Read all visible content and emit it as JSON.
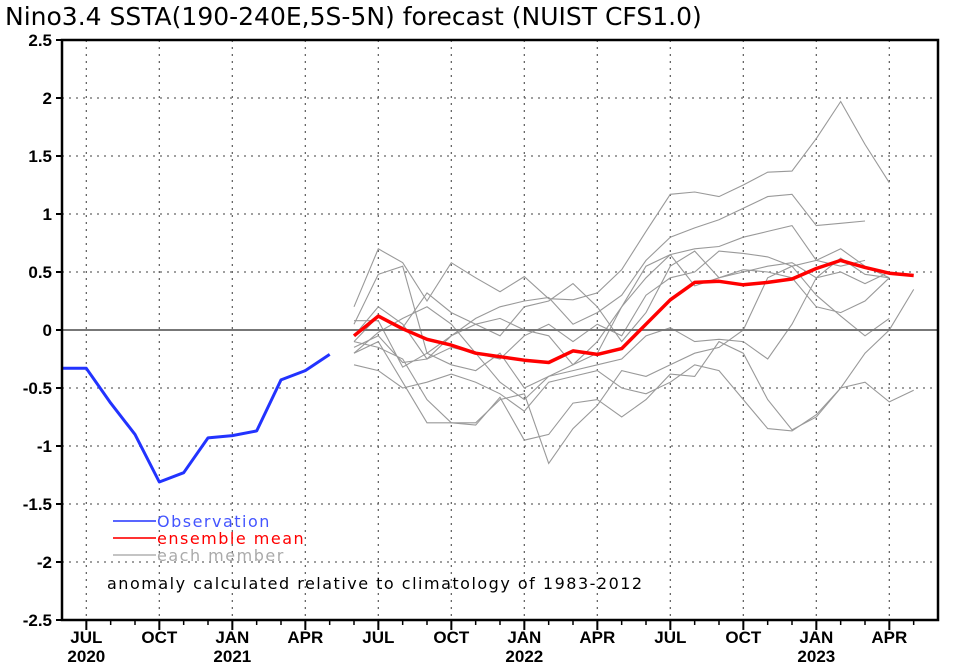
{
  "chart_data": {
    "type": "line",
    "title": "Nino3.4 SSTA(190-240E,5S-5N) forecast (NUIST CFS1.0)",
    "xlabel": "",
    "ylabel": "",
    "ylim": [
      -2.5,
      2.5
    ],
    "y_ticks": [
      "2.5",
      "2",
      "1.5",
      "1",
      "0.5",
      "0",
      "-0.5",
      "-1",
      "-1.5",
      "-2",
      "-2.5"
    ],
    "y_tick_values": [
      2.5,
      2,
      1.5,
      1,
      0.5,
      0,
      -0.5,
      -1,
      -1.5,
      -2,
      -2.5
    ],
    "x_range_months": [
      "2020-06",
      "2023-06"
    ],
    "x_ticks": [
      {
        "month": "2020-07",
        "label": "JUL",
        "year": "2020"
      },
      {
        "month": "2020-10",
        "label": "OCT",
        "year": ""
      },
      {
        "month": "2021-01",
        "label": "JAN",
        "year": "2021"
      },
      {
        "month": "2021-04",
        "label": "APR",
        "year": ""
      },
      {
        "month": "2021-07",
        "label": "JUL",
        "year": ""
      },
      {
        "month": "2021-10",
        "label": "OCT",
        "year": ""
      },
      {
        "month": "2022-01",
        "label": "JAN",
        "year": "2022"
      },
      {
        "month": "2022-04",
        "label": "APR",
        "year": ""
      },
      {
        "month": "2022-07",
        "label": "JUL",
        "year": ""
      },
      {
        "month": "2022-10",
        "label": "OCT",
        "year": ""
      },
      {
        "month": "2023-01",
        "label": "JAN",
        "year": "2023"
      },
      {
        "month": "2023-04",
        "label": "APR",
        "year": ""
      }
    ],
    "grid": true,
    "legend_position": "bottom-left",
    "legend": [
      {
        "name": "Observation",
        "color": "#2233ff"
      },
      {
        "name": "ensemble mean",
        "color": "#ff0000"
      },
      {
        "name": "each member",
        "color": "#999999"
      }
    ],
    "annotation": "anomaly calculated relative to climatology of 1983-2012",
    "observation": {
      "start": "2020-06",
      "values": [
        -0.33,
        -0.33,
        -0.63,
        -0.9,
        -1.31,
        -1.23,
        -0.93,
        -0.91,
        -0.87,
        -0.43,
        -0.35,
        -0.21
      ]
    },
    "ensemble_mean": {
      "start": "2021-06",
      "values": [
        -0.05,
        0.12,
        0.01,
        -0.08,
        -0.13,
        -0.2,
        -0.23,
        -0.26,
        -0.28,
        -0.18,
        -0.21,
        -0.16,
        0.05,
        0.26,
        0.41,
        0.42,
        0.39,
        0.41,
        0.44,
        0.53,
        0.6,
        0.54,
        0.49,
        0.47
      ]
    },
    "members": {
      "start": "2021-06",
      "series": [
        [
          0.2,
          0.7,
          0.58,
          0.25,
          0.58,
          0.45,
          0.33,
          0.46,
          0.27,
          0.26,
          0.32,
          0.52,
          0.85,
          1.17,
          1.19,
          1.15,
          1.25,
          1.36,
          1.37,
          1.65,
          1.97,
          1.6,
          1.27
        ],
        [
          0.05,
          0.48,
          0.55,
          -0.2,
          -0.05,
          0.1,
          0.2,
          0.25,
          0.28,
          0.05,
          0.15,
          0.3,
          0.6,
          0.8,
          0.88,
          0.95,
          1.05,
          1.15,
          1.17,
          0.9,
          0.92,
          0.94
        ],
        [
          -0.05,
          0.2,
          0.05,
          -0.25,
          -0.05,
          0.05,
          0.1,
          0.0,
          -0.05,
          -0.3,
          -0.1,
          0.2,
          0.45,
          0.65,
          0.7,
          0.72,
          0.8,
          0.85,
          0.9,
          0.6,
          0.55,
          0.6
        ],
        [
          -0.1,
          0.12,
          0.02,
          0.32,
          0.15,
          0.05,
          -0.05,
          0.2,
          0.25,
          0.4,
          0.2,
          -0.1,
          0.15,
          0.55,
          0.68,
          0.45,
          0.5,
          0.55,
          0.58,
          0.45,
          0.62,
          0.48,
          0.45
        ],
        [
          -0.2,
          -0.02,
          0.1,
          0.2,
          0.05,
          -0.2,
          -0.25,
          -0.05,
          0.05,
          -0.1,
          0.05,
          -0.05,
          0.3,
          0.45,
          0.5,
          0.68,
          0.66,
          0.63,
          0.55,
          0.3,
          0.12,
          -0.05,
          0.1
        ],
        [
          0.08,
          0.08,
          -0.32,
          -0.2,
          -0.3,
          -0.35,
          -0.2,
          -0.5,
          -0.4,
          -0.3,
          -0.2,
          0.2,
          0.55,
          0.65,
          0.38,
          0.45,
          0.52,
          0.5,
          0.45,
          0.2,
          0.15,
          0.25,
          0.45
        ],
        [
          -0.15,
          -0.05,
          -0.28,
          -0.25,
          -0.15,
          -0.2,
          -0.45,
          -0.6,
          -0.4,
          -0.35,
          -0.3,
          -0.25,
          -0.05,
          0.02,
          -0.1,
          -0.08,
          -0.1,
          -0.25,
          0.05,
          0.45,
          0.5,
          0.4,
          0.5
        ],
        [
          -0.3,
          -0.35,
          -0.5,
          -0.45,
          -0.38,
          -0.45,
          -0.55,
          -0.7,
          -0.45,
          -0.4,
          -0.35,
          -0.5,
          -0.55,
          -0.45,
          -0.3,
          -0.35,
          -0.6,
          -0.85,
          -0.87,
          -0.73,
          -0.5,
          -0.45,
          -0.62,
          -0.52
        ],
        [
          -0.2,
          -0.1,
          -0.45,
          -0.8,
          -0.8,
          -0.82,
          -0.58,
          -0.95,
          -0.9,
          -0.63,
          -0.6,
          -0.75,
          -0.6,
          -0.38,
          -0.4,
          -0.1,
          -0.2,
          -0.6,
          -0.86,
          -0.75,
          -0.5,
          -0.2,
          0.0,
          0.35
        ],
        [
          -0.1,
          -0.15,
          -0.25,
          -0.6,
          -0.8,
          -0.8,
          -0.6,
          -0.55,
          -1.15,
          -0.85,
          -0.65,
          -0.35,
          -0.4,
          -0.3,
          -0.2,
          -0.15,
          0.0,
          0.45,
          0.55,
          0.6,
          0.7,
          0.55,
          0.45
        ]
      ]
    }
  }
}
